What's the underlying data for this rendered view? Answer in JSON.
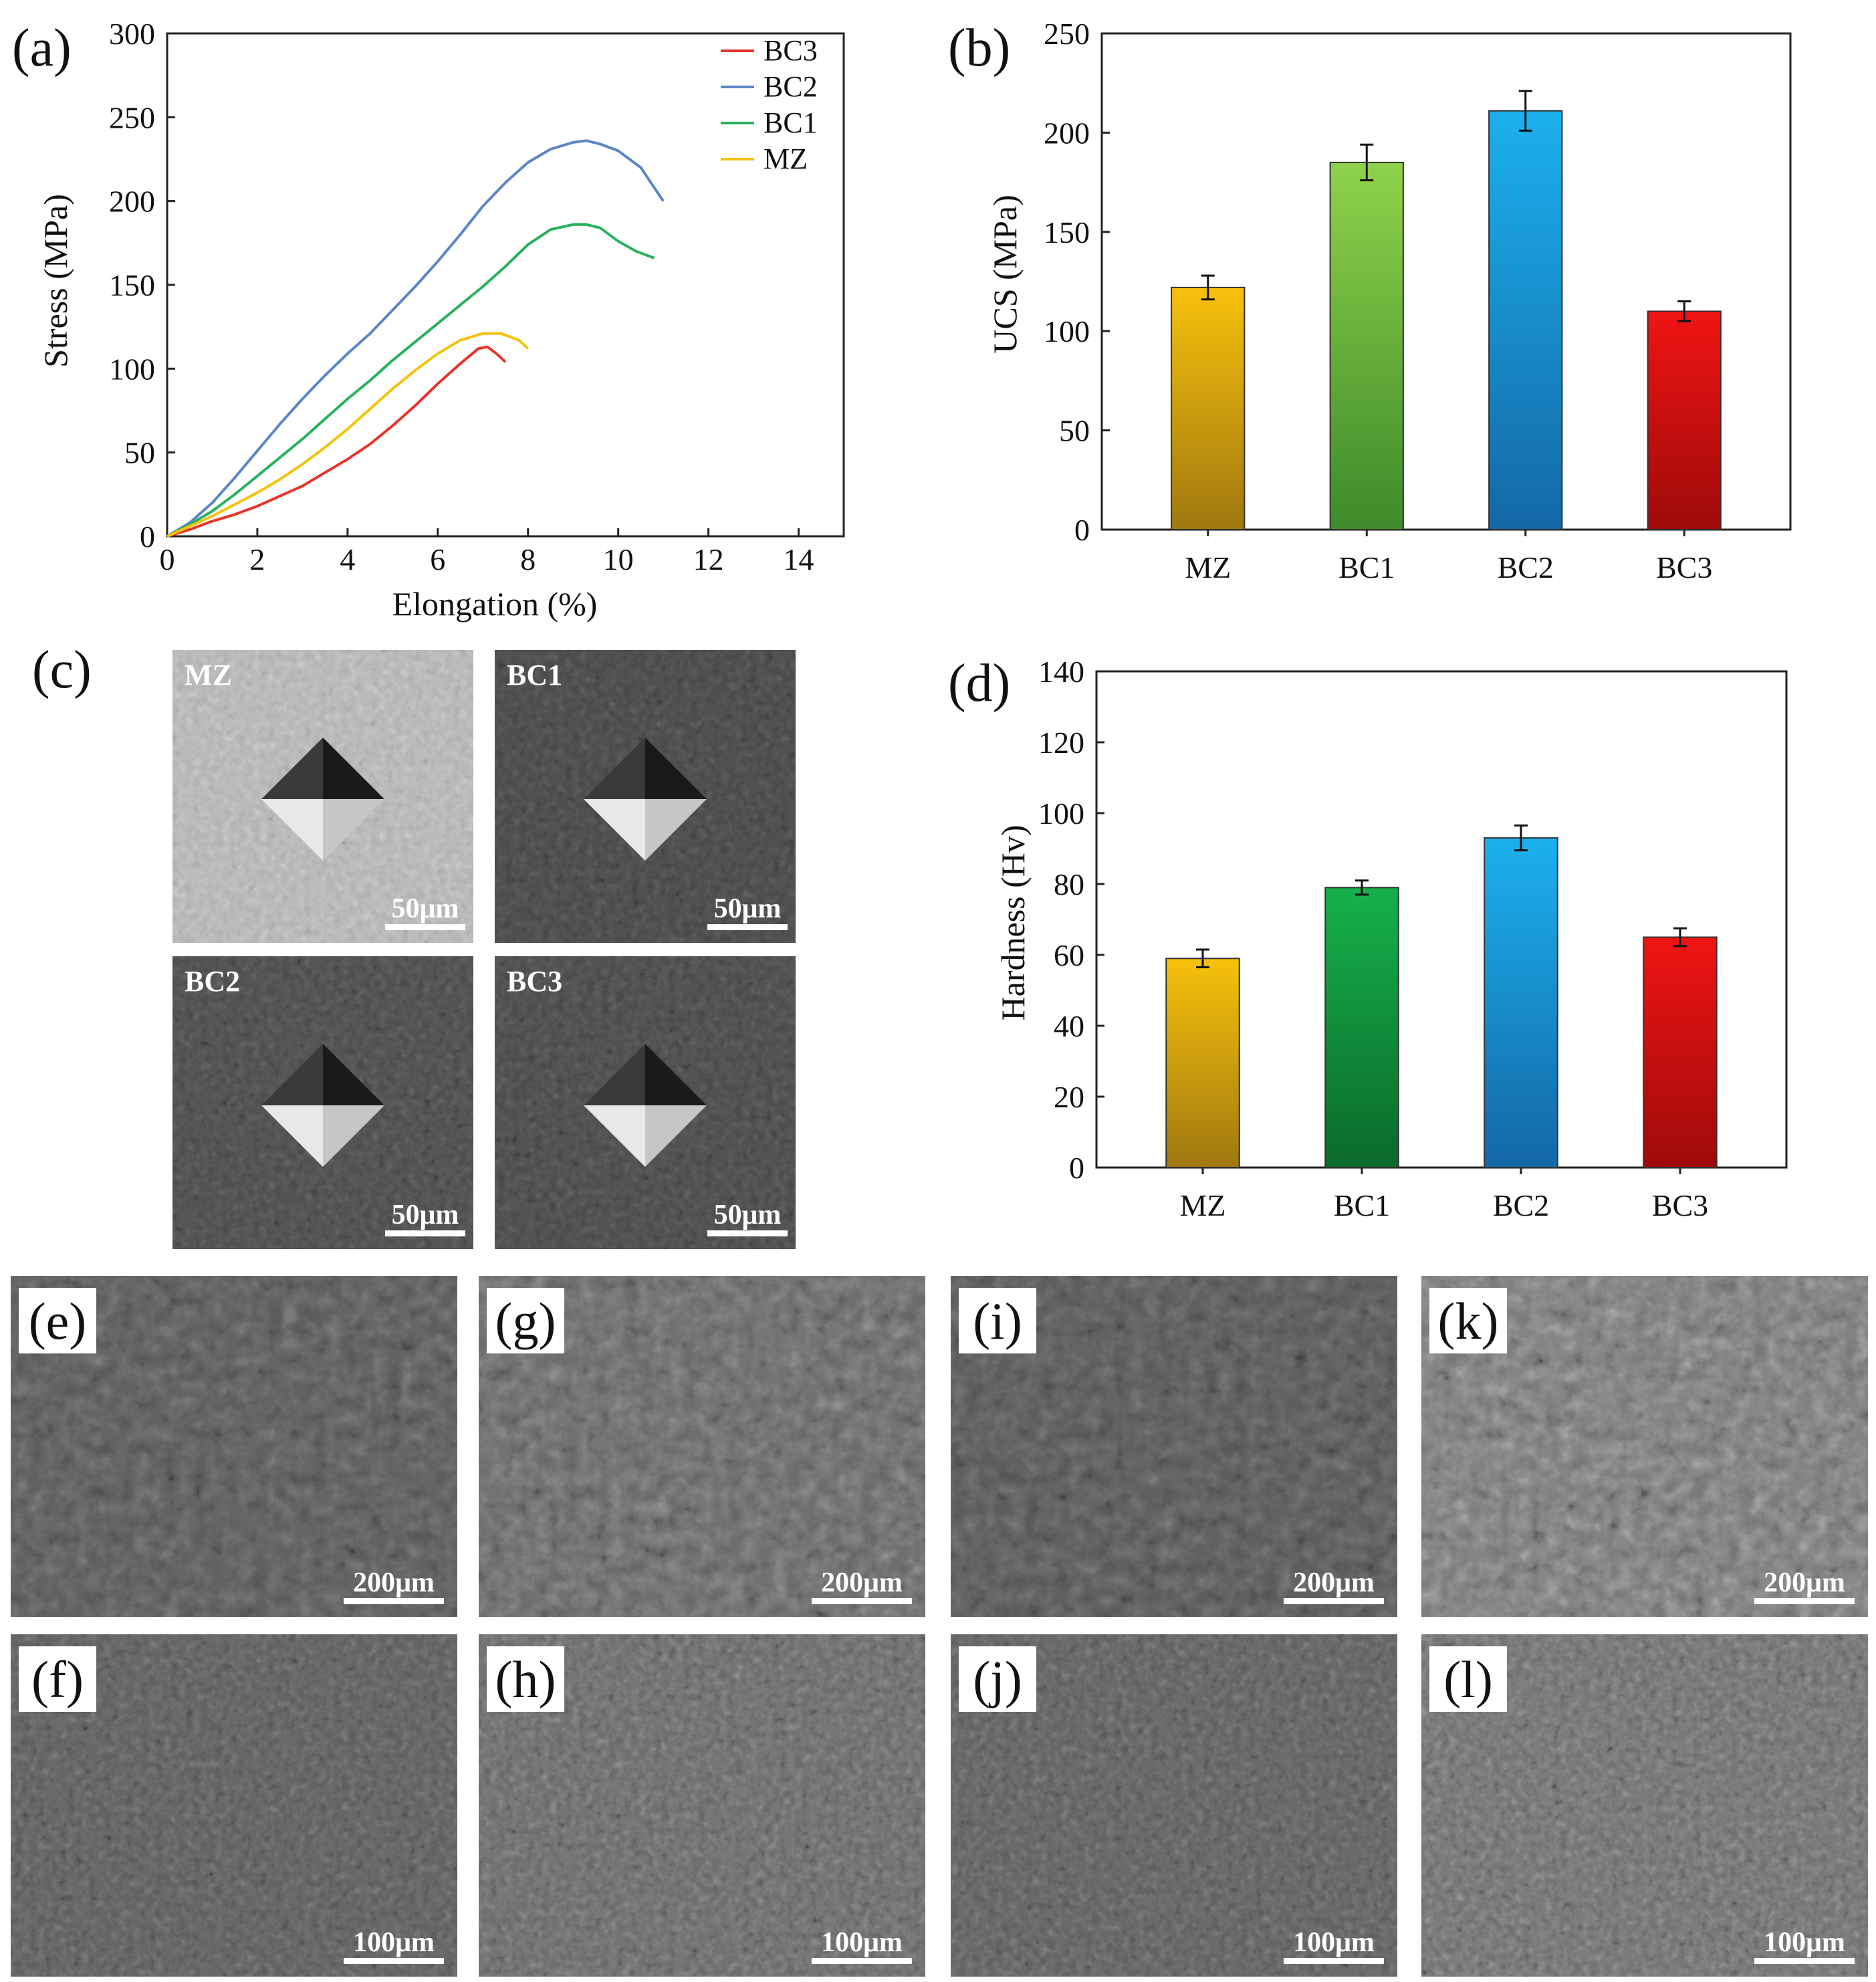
{
  "panels": {
    "a": "(a)",
    "b": "(b)",
    "c": "(c)",
    "d": "(d)",
    "e": "(e)",
    "f": "(f)",
    "g": "(g)",
    "h": "(h)",
    "i": "(i)",
    "j": "(j)",
    "k": "(k)",
    "l": "(l)"
  },
  "chart_data": [
    {
      "id": "a",
      "type": "line",
      "xlabel": "Elongation (%)",
      "ylabel": "Stress (MPa)",
      "xlim": [
        0,
        15
      ],
      "ylim": [
        0,
        300
      ],
      "xticks": [
        0,
        2,
        4,
        6,
        8,
        10,
        12,
        14
      ],
      "yticks": [
        0,
        50,
        100,
        150,
        200,
        250,
        300
      ],
      "legend": "top-right",
      "series": [
        {
          "name": "BC3",
          "color": "#e8342a",
          "x": [
            0,
            0.5,
            1,
            1.5,
            2,
            2.5,
            3,
            3.5,
            4,
            4.5,
            5,
            5.5,
            6,
            6.5,
            6.9,
            7.1,
            7.3,
            7.5
          ],
          "y": [
            0,
            4,
            9,
            13,
            18,
            24,
            30,
            38,
            46,
            55,
            66,
            78,
            91,
            103,
            112,
            113,
            109,
            104
          ]
        },
        {
          "name": "BC2",
          "color": "#5b86c8",
          "x": [
            0,
            0.5,
            1,
            1.5,
            2,
            2.5,
            3,
            3.5,
            4,
            4.5,
            5,
            5.5,
            6,
            6.5,
            7,
            7.5,
            8,
            8.5,
            9,
            9.3,
            9.6,
            10,
            10.5,
            11
          ],
          "y": [
            0,
            8,
            20,
            35,
            51,
            67,
            82,
            96,
            109,
            121,
            135,
            149,
            164,
            180,
            197,
            211,
            223,
            231,
            235,
            236,
            234,
            230,
            220,
            200
          ]
        },
        {
          "name": "BC1",
          "color": "#27b25b",
          "x": [
            0,
            0.5,
            1,
            1.5,
            2,
            2.5,
            3,
            3.5,
            4,
            4.5,
            5,
            5.5,
            6,
            6.5,
            7,
            7.5,
            8,
            8.5,
            9,
            9.3,
            9.6,
            10,
            10.4,
            10.8
          ],
          "y": [
            0,
            7,
            15,
            25,
            36,
            47,
            58,
            70,
            82,
            93,
            105,
            116,
            127,
            138,
            149,
            161,
            174,
            183,
            186,
            186,
            184,
            176,
            170,
            166
          ]
        },
        {
          "name": "MZ",
          "color": "#f4c20d",
          "x": [
            0,
            0.5,
            1,
            1.5,
            2,
            2.5,
            3,
            3.5,
            4,
            4.5,
            5,
            5.5,
            6,
            6.5,
            7,
            7.4,
            7.8,
            8
          ],
          "y": [
            0,
            6,
            12,
            19,
            26,
            34,
            43,
            53,
            64,
            76,
            88,
            99,
            109,
            117,
            121,
            121,
            117,
            112
          ]
        }
      ]
    },
    {
      "id": "b",
      "type": "bar",
      "categories": [
        "MZ",
        "BC1",
        "BC2",
        "BC3"
      ],
      "values": [
        122,
        185,
        211,
        110
      ],
      "errors": [
        6,
        9,
        10,
        5
      ],
      "ylabel": "UCS (MPa)",
      "ylim": [
        0,
        250
      ],
      "yticks": [
        0,
        50,
        100,
        150,
        200,
        250
      ],
      "colors": [
        [
          "#f7c10c",
          "#a07810"
        ],
        [
          "#8fd24a",
          "#3e8a2b"
        ],
        [
          "#1cb0ee",
          "#1468a6"
        ],
        [
          "#f01414",
          "#9e0a0a"
        ]
      ]
    },
    {
      "id": "d",
      "type": "bar",
      "categories": [
        "MZ",
        "BC1",
        "BC2",
        "BC3"
      ],
      "values": [
        59,
        79,
        93,
        65
      ],
      "errors": [
        2.5,
        2,
        3.5,
        2.5
      ],
      "ylabel": "Hardness (Hv)",
      "ylim": [
        0,
        140
      ],
      "yticks": [
        0,
        20,
        40,
        60,
        80,
        100,
        120,
        140
      ],
      "colors": [
        [
          "#f7c10c",
          "#a07810"
        ],
        [
          "#16b04c",
          "#0b6a2a"
        ],
        [
          "#1cb0ee",
          "#1468a6"
        ],
        [
          "#f01414",
          "#9e0a0a"
        ]
      ]
    }
  ],
  "micrographs_c": [
    {
      "label": "MZ",
      "scale": "50μm"
    },
    {
      "label": "BC1",
      "scale": "50μm"
    },
    {
      "label": "BC2",
      "scale": "50μm"
    },
    {
      "label": "BC3",
      "scale": "50μm"
    }
  ],
  "micrographs_fracture": {
    "top_scale": "200μm",
    "bottom_scale": "100μm"
  }
}
